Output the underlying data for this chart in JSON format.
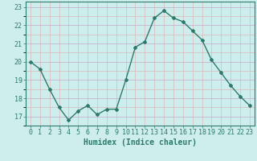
{
  "x": [
    0,
    1,
    2,
    3,
    4,
    5,
    6,
    7,
    8,
    9,
    10,
    11,
    12,
    13,
    14,
    15,
    16,
    17,
    18,
    19,
    20,
    21,
    22,
    23
  ],
  "y": [
    20.0,
    19.6,
    18.5,
    17.5,
    16.8,
    17.3,
    17.6,
    17.1,
    17.4,
    17.4,
    19.0,
    20.8,
    21.1,
    22.4,
    22.8,
    22.4,
    22.2,
    21.7,
    21.2,
    20.1,
    19.4,
    18.7,
    18.1,
    17.6
  ],
  "xlim": [
    -0.5,
    23.5
  ],
  "ylim": [
    16.5,
    23.3
  ],
  "yticks": [
    17,
    18,
    19,
    20,
    21,
    22,
    23
  ],
  "xticks": [
    0,
    1,
    2,
    3,
    4,
    5,
    6,
    7,
    8,
    9,
    10,
    11,
    12,
    13,
    14,
    15,
    16,
    17,
    18,
    19,
    20,
    21,
    22,
    23
  ],
  "xlabel": "Humidex (Indice chaleur)",
  "line_color": "#2d7a6a",
  "marker": "D",
  "marker_size": 2.0,
  "bg_color": "#ceeeed",
  "grid_minor_color": "#dbb8b8",
  "grid_major_color": "#c8a8c8",
  "axis_color": "#2d7a6a",
  "tick_label_color": "#2d7a6a",
  "xlabel_color": "#2d7a6a",
  "xlabel_fontsize": 7,
  "tick_fontsize": 6,
  "line_width": 1.0
}
